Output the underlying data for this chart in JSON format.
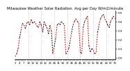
{
  "title": "Milwaukee Weather Solar Radiation  Avg per Day W/m2/minute",
  "title_fontsize": 3.8,
  "background_color": "#ffffff",
  "line_color_red": "#dd0000",
  "line_color_black": "#000000",
  "grid_color": "#b0b0b0",
  "ylim": [
    -0.02,
    0.52
  ],
  "yticks": [
    0.0,
    0.1,
    0.2,
    0.3,
    0.4,
    0.5
  ],
  "ylabel_fontsize": 3.0,
  "xlabel_fontsize": 2.8,
  "values": [
    0.01,
    0.04,
    0.1,
    0.22,
    0.3,
    0.38,
    0.36,
    0.32,
    0.38,
    0.4,
    0.36,
    0.42,
    0.38,
    0.4,
    0.38,
    0.35,
    0.33,
    0.4,
    0.36,
    0.28,
    0.4,
    0.36,
    0.33,
    0.26,
    0.36,
    0.3,
    0.04,
    0.12,
    0.22,
    0.36,
    0.38,
    0.36,
    0.4,
    0.38,
    0.36,
    0.04,
    0.06,
    0.1,
    0.18,
    0.28,
    0.36,
    0.4,
    0.43,
    0.4,
    0.38,
    0.06,
    0.04,
    0.33,
    0.4,
    0.43,
    0.46,
    0.13,
    0.06,
    0.1,
    0.08,
    0.04,
    0.06,
    0.28,
    0.36,
    0.43,
    0.46,
    0.48,
    0.43,
    0.4,
    0.36,
    0.33,
    0.4,
    0.43,
    0.46,
    0.43
  ],
  "grid_positions": [
    9,
    18,
    27,
    36,
    45,
    54,
    63
  ],
  "xtick_step": 3
}
